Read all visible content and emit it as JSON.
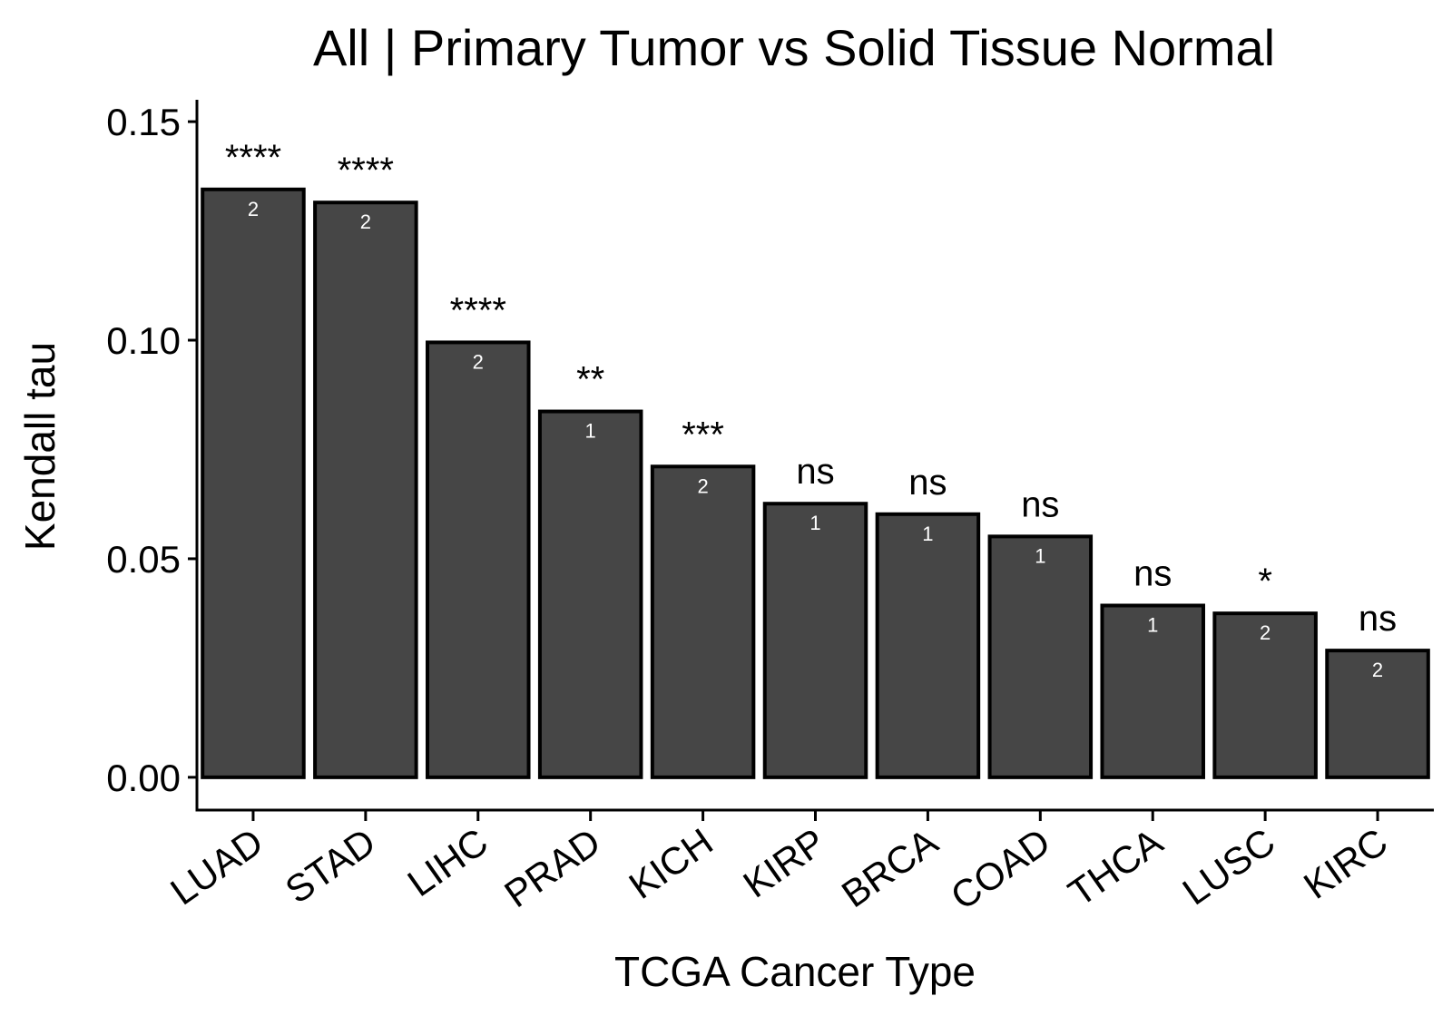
{
  "chart_data": {
    "type": "bar",
    "title": "All | Primary Tumor vs Solid Tissue Normal",
    "xlabel": "TCGA Cancer Type",
    "ylabel": "Kendall tau",
    "ylim": [
      -0.0075,
      0.155
    ],
    "yticks": [
      0.0,
      0.05,
      0.1,
      0.15
    ],
    "ytick_labels": [
      "0.00",
      "0.05",
      "0.10",
      "0.15"
    ],
    "categories": [
      "LUAD",
      "STAD",
      "LIHC",
      "PRAD",
      "KICH",
      "KIRP",
      "BRCA",
      "COAD",
      "THCA",
      "LUSC",
      "KIRC"
    ],
    "values": [
      0.1345,
      0.1315,
      0.0995,
      0.0837,
      0.0711,
      0.0626,
      0.0602,
      0.0551,
      0.0393,
      0.0375,
      0.029
    ],
    "significance": [
      "****",
      "****",
      "****",
      "**",
      "***",
      "ns",
      "ns",
      "ns",
      "ns",
      "*",
      "ns"
    ],
    "bar_labels": [
      "2",
      "2",
      "2",
      "1",
      "2",
      "1",
      "1",
      "1",
      "1",
      "2",
      "2"
    ],
    "legend": "none",
    "grid": false,
    "colors": {
      "bar_fill": "#464646",
      "bar_stroke": "#000000",
      "bar_label": "#ffffff"
    }
  }
}
